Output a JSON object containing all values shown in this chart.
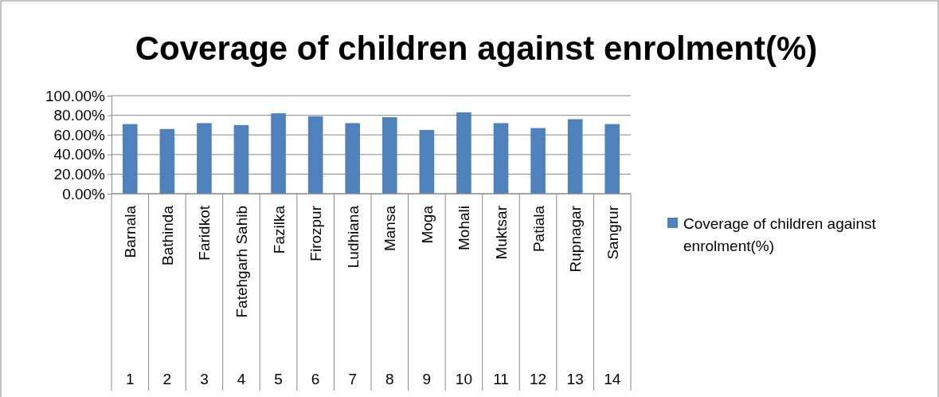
{
  "chart_data": {
    "type": "bar",
    "title": "Coverage of children against enrolment(%)",
    "categories": [
      "Barnala",
      "Bathinda",
      "Faridkot",
      "Fatehgarh Sahib",
      "Fazilka",
      "Firozpur",
      "Ludhiana",
      "Mansa",
      "Moga",
      "Mohali",
      "Muktsar",
      "Patiala",
      "Rupnagar",
      "Sangrur"
    ],
    "series": [
      {
        "name": "Coverage of children against enrolment(%)",
        "color": "#4f81bd",
        "values": [
          71,
          66,
          72,
          70,
          82,
          79,
          72,
          78,
          65,
          83,
          72,
          67,
          76,
          71
        ]
      }
    ],
    "ylim": [
      0,
      100
    ],
    "yticks": [
      {
        "value": 0,
        "label": "0.00%"
      },
      {
        "value": 20,
        "label": "20.00%"
      },
      {
        "value": 40,
        "label": "40.00%"
      },
      {
        "value": 60,
        "label": "60.00%"
      },
      {
        "value": 80,
        "label": "80.00%"
      },
      {
        "value": 100,
        "label": "100.00%"
      }
    ],
    "annotations": [
      "1",
      "2",
      "3",
      "4",
      "5",
      "6",
      "7",
      "8",
      "9",
      "10",
      "11",
      "12",
      "13",
      "14"
    ],
    "grid": "y",
    "legend": "right"
  }
}
